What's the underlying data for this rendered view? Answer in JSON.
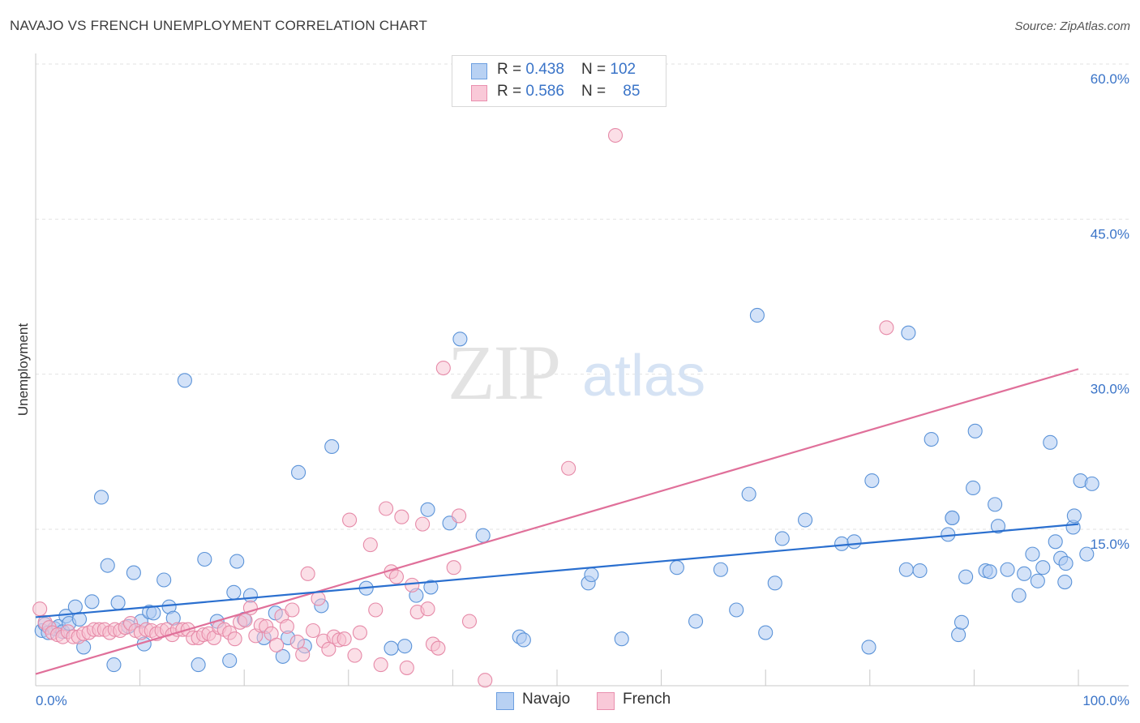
{
  "title": "NAVAJO VS FRENCH UNEMPLOYMENT CORRELATION CHART",
  "source": "Source: ZipAtlas.com",
  "watermark": {
    "zip": "ZIP",
    "atlas": "atlas"
  },
  "legend": {
    "rows": [
      {
        "r_label": "R = ",
        "r_value": "0.438",
        "n_label": "N = ",
        "n_value": "102"
      },
      {
        "r_label": "R = ",
        "r_value": "0.586",
        "n_label": "N = ",
        "n_value": "85"
      }
    ]
  },
  "chart_data": {
    "type": "scatter",
    "title": "NAVAJO VS FRENCH UNEMPLOYMENT CORRELATION CHART",
    "xlabel": "",
    "ylabel": "Unemployment",
    "xlim": [
      0,
      100
    ],
    "ylim": [
      0,
      63
    ],
    "x_tick_labels": [
      "0.0%",
      "100.0%"
    ],
    "y_ticks": [
      15,
      30,
      45,
      60
    ],
    "y_tick_labels": [
      "15.0%",
      "30.0%",
      "45.0%",
      "60.0%"
    ],
    "grid": true,
    "legend_position": "top-center",
    "colors": {
      "navajo_fill": "#aecbf2",
      "navajo_stroke": "#5b93d8",
      "navajo_line": "#2a6fcf",
      "french_fill": "#f7bfd0",
      "french_stroke": "#e68aa8",
      "french_line": "#e0709a",
      "tick_text": "#3a74c8"
    },
    "series": [
      {
        "name": "Navajo",
        "trend": {
          "x": [
            0,
            100
          ],
          "y": [
            6.5,
            15.5
          ]
        },
        "points": [
          [
            0.6,
            5.2
          ],
          [
            0.9,
            5.8
          ],
          [
            1.2,
            5.0
          ],
          [
            1.8,
            5.4
          ],
          [
            2.2,
            5.6
          ],
          [
            2.6,
            5.1
          ],
          [
            2.9,
            6.6
          ],
          [
            3.2,
            5.9
          ],
          [
            3.8,
            7.5
          ],
          [
            4.2,
            6.3
          ],
          [
            4.6,
            3.6
          ],
          [
            5.4,
            8.0
          ],
          [
            6.3,
            18.1
          ],
          [
            6.9,
            11.5
          ],
          [
            7.5,
            1.9
          ],
          [
            7.9,
            7.9
          ],
          [
            8.9,
            5.6
          ],
          [
            9.4,
            10.8
          ],
          [
            10.1,
            6.1
          ],
          [
            10.4,
            3.9
          ],
          [
            10.9,
            7.0
          ],
          [
            11.3,
            6.9
          ],
          [
            12.3,
            10.1
          ],
          [
            12.8,
            7.5
          ],
          [
            13.2,
            6.4
          ],
          [
            14.3,
            29.4
          ],
          [
            15.6,
            1.9
          ],
          [
            16.2,
            12.1
          ],
          [
            17.4,
            6.1
          ],
          [
            18.6,
            2.3
          ],
          [
            19.0,
            8.9
          ],
          [
            19.3,
            11.9
          ],
          [
            20.0,
            6.3
          ],
          [
            20.6,
            8.6
          ],
          [
            21.9,
            4.5
          ],
          [
            23.0,
            6.9
          ],
          [
            23.7,
            2.7
          ],
          [
            24.2,
            4.5
          ],
          [
            25.2,
            20.5
          ],
          [
            25.8,
            3.7
          ],
          [
            27.4,
            7.6
          ],
          [
            28.4,
            23.0
          ],
          [
            31.7,
            9.3
          ],
          [
            34.1,
            3.5
          ],
          [
            35.4,
            3.7
          ],
          [
            36.5,
            8.6
          ],
          [
            37.6,
            16.9
          ],
          [
            37.9,
            9.4
          ],
          [
            39.7,
            15.6
          ],
          [
            40.7,
            33.4
          ],
          [
            42.9,
            14.4
          ],
          [
            46.4,
            4.6
          ],
          [
            46.8,
            4.3
          ],
          [
            53.0,
            9.8
          ],
          [
            53.3,
            10.6
          ],
          [
            56.2,
            4.4
          ],
          [
            61.5,
            11.3
          ],
          [
            63.3,
            6.1
          ],
          [
            65.7,
            11.1
          ],
          [
            67.2,
            7.2
          ],
          [
            68.4,
            18.4
          ],
          [
            69.2,
            35.7
          ],
          [
            70.0,
            5.0
          ],
          [
            70.9,
            9.8
          ],
          [
            71.6,
            14.1
          ],
          [
            73.8,
            15.9
          ],
          [
            77.3,
            13.6
          ],
          [
            78.5,
            13.8
          ],
          [
            79.9,
            3.6
          ],
          [
            80.2,
            19.7
          ],
          [
            83.5,
            11.1
          ],
          [
            83.7,
            34.0
          ],
          [
            84.8,
            11.0
          ],
          [
            85.9,
            23.7
          ],
          [
            87.5,
            14.5
          ],
          [
            87.9,
            16.1
          ],
          [
            87.9,
            16.1
          ],
          [
            88.5,
            4.8
          ],
          [
            88.8,
            6.0
          ],
          [
            89.2,
            10.4
          ],
          [
            89.9,
            19.0
          ],
          [
            90.1,
            24.5
          ],
          [
            91.1,
            11.0
          ],
          [
            91.5,
            10.9
          ],
          [
            92.0,
            17.4
          ],
          [
            92.3,
            15.3
          ],
          [
            93.2,
            11.1
          ],
          [
            94.3,
            8.6
          ],
          [
            94.8,
            10.7
          ],
          [
            95.6,
            12.6
          ],
          [
            96.1,
            10.0
          ],
          [
            96.6,
            11.3
          ],
          [
            97.3,
            23.4
          ],
          [
            97.8,
            13.8
          ],
          [
            98.3,
            12.2
          ],
          [
            98.8,
            11.7
          ],
          [
            98.7,
            9.9
          ],
          [
            99.5,
            15.2
          ],
          [
            99.6,
            16.3
          ],
          [
            100.2,
            19.7
          ],
          [
            100.8,
            12.6
          ],
          [
            101.3,
            19.4
          ]
        ]
      },
      {
        "name": "French",
        "trend": {
          "x": [
            0,
            100
          ],
          "y": [
            1.0,
            30.5
          ]
        },
        "points": [
          [
            0.4,
            7.3
          ],
          [
            0.9,
            6.0
          ],
          [
            1.3,
            5.5
          ],
          [
            1.6,
            5.0
          ],
          [
            2.1,
            4.8
          ],
          [
            2.6,
            4.6
          ],
          [
            3.1,
            5.1
          ],
          [
            3.6,
            4.6
          ],
          [
            4.1,
            4.6
          ],
          [
            4.6,
            4.9
          ],
          [
            5.1,
            5.0
          ],
          [
            5.6,
            5.3
          ],
          [
            6.1,
            5.3
          ],
          [
            6.6,
            5.3
          ],
          [
            7.1,
            5.0
          ],
          [
            7.6,
            5.3
          ],
          [
            8.1,
            5.2
          ],
          [
            8.6,
            5.5
          ],
          [
            9.1,
            5.9
          ],
          [
            9.6,
            5.2
          ],
          [
            10.1,
            5.0
          ],
          [
            10.6,
            5.3
          ],
          [
            11.1,
            5.2
          ],
          [
            11.6,
            4.9
          ],
          [
            12.1,
            5.2
          ],
          [
            12.6,
            5.3
          ],
          [
            13.1,
            4.8
          ],
          [
            13.6,
            5.3
          ],
          [
            14.1,
            5.3
          ],
          [
            14.6,
            5.3
          ],
          [
            15.1,
            4.5
          ],
          [
            15.6,
            4.5
          ],
          [
            16.1,
            4.8
          ],
          [
            16.6,
            4.9
          ],
          [
            17.1,
            4.5
          ],
          [
            17.6,
            5.5
          ],
          [
            18.1,
            5.3
          ],
          [
            18.6,
            5.0
          ],
          [
            19.1,
            4.4
          ],
          [
            19.6,
            6.0
          ],
          [
            20.1,
            6.2
          ],
          [
            20.6,
            7.4
          ],
          [
            21.1,
            4.7
          ],
          [
            21.6,
            5.7
          ],
          [
            22.1,
            5.6
          ],
          [
            22.6,
            4.9
          ],
          [
            23.1,
            3.8
          ],
          [
            23.6,
            6.6
          ],
          [
            24.1,
            5.6
          ],
          [
            24.6,
            7.2
          ],
          [
            25.1,
            4.1
          ],
          [
            25.6,
            2.9
          ],
          [
            26.1,
            10.7
          ],
          [
            26.6,
            5.2
          ],
          [
            27.1,
            8.3
          ],
          [
            27.6,
            4.2
          ],
          [
            28.1,
            3.4
          ],
          [
            28.6,
            4.6
          ],
          [
            29.1,
            4.3
          ],
          [
            29.6,
            4.4
          ],
          [
            30.1,
            15.9
          ],
          [
            30.6,
            2.8
          ],
          [
            31.1,
            5.0
          ],
          [
            32.1,
            13.5
          ],
          [
            32.6,
            7.2
          ],
          [
            33.1,
            1.9
          ],
          [
            33.6,
            17.0
          ],
          [
            34.1,
            10.9
          ],
          [
            34.6,
            10.4
          ],
          [
            35.1,
            16.2
          ],
          [
            35.6,
            1.6
          ],
          [
            36.1,
            9.6
          ],
          [
            36.6,
            7.0
          ],
          [
            37.1,
            15.5
          ],
          [
            37.6,
            7.3
          ],
          [
            38.1,
            3.9
          ],
          [
            38.6,
            3.5
          ],
          [
            39.1,
            30.6
          ],
          [
            40.1,
            11.3
          ],
          [
            40.6,
            16.3
          ],
          [
            41.6,
            6.1
          ],
          [
            43.1,
            0.4
          ],
          [
            51.1,
            20.9
          ],
          [
            55.6,
            53.1
          ],
          [
            81.6,
            34.5
          ]
        ]
      }
    ]
  },
  "bottom_legend": {
    "items": [
      {
        "label": "Navajo"
      },
      {
        "label": "French"
      }
    ]
  }
}
